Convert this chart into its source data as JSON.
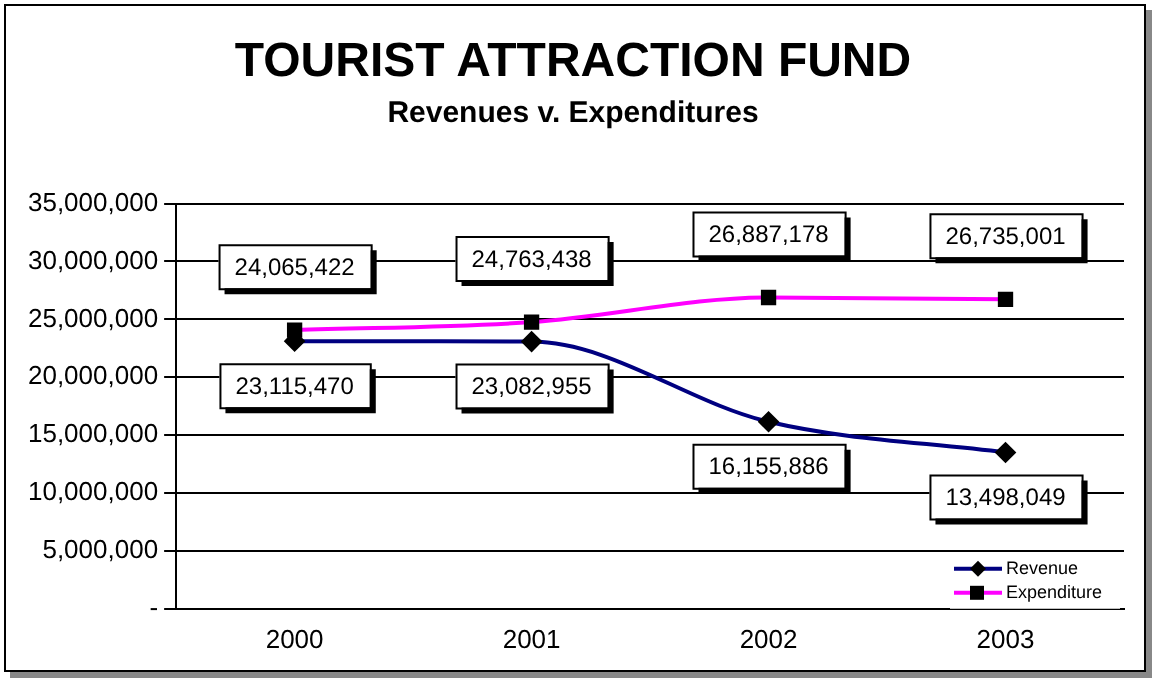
{
  "chart_data": {
    "type": "line",
    "title": "TOURIST ATTRACTION FUND",
    "subtitle": "Revenues v. Expenditures",
    "categories": [
      "2000",
      "2001",
      "2002",
      "2003"
    ],
    "series": [
      {
        "name": "Revenue",
        "color": "#000080",
        "marker": "diamond",
        "values": [
          23115470,
          23082955,
          16155886,
          13498049
        ],
        "value_labels": [
          "23,115,470",
          "23,082,955",
          "16,155,886",
          "13,498,049"
        ]
      },
      {
        "name": "Expenditure",
        "color": "#ff00ff",
        "marker": "square",
        "values": [
          24065422,
          24763438,
          26887178,
          26735001
        ],
        "value_labels": [
          "24,065,422",
          "24,763,438",
          "26,887,178",
          "26,735,001"
        ]
      }
    ],
    "ylim": [
      0,
      35000000
    ],
    "yticks": [
      {
        "value": 0,
        "label": "-"
      },
      {
        "value": 5000000,
        "label": "5,000,000"
      },
      {
        "value": 10000000,
        "label": "10,000,000"
      },
      {
        "value": 15000000,
        "label": "15,000,000"
      },
      {
        "value": 20000000,
        "label": "20,000,000"
      },
      {
        "value": 25000000,
        "label": "25,000,000"
      },
      {
        "value": 30000000,
        "label": "30,000,000"
      },
      {
        "value": 35000000,
        "label": "35,000,000"
      }
    ],
    "grid": "y",
    "legend": "bottom right"
  }
}
